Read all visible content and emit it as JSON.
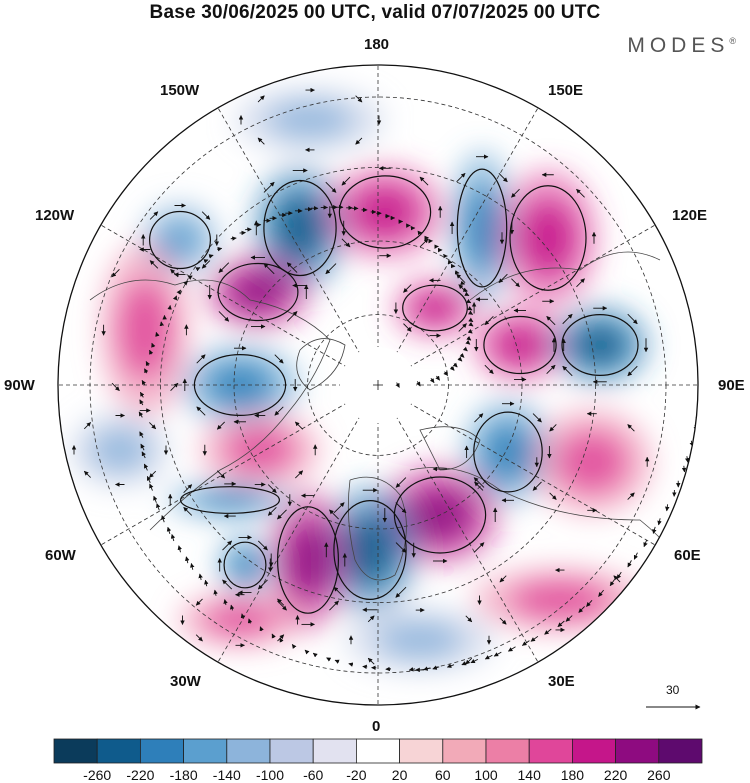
{
  "title": "Base 30/06/2025 00 UTC, valid 07/07/2025 00 UTC",
  "brand": "MODES",
  "brand_mark": "®",
  "longitude_labels": {
    "n180": "180",
    "w150": "150W",
    "e150": "150E",
    "w120": "120W",
    "e120": "120E",
    "w90": "90W",
    "e90": "90E",
    "w60": "60W",
    "e60": "60E",
    "w30": "30W",
    "e30": "30E",
    "s0": "0"
  },
  "reference_vector": {
    "label": "30"
  },
  "colorbar": {
    "levels": [
      "-260",
      "-220",
      "-180",
      "-140",
      "-100",
      "-60",
      "-20",
      "20",
      "60",
      "100",
      "140",
      "180",
      "220",
      "260"
    ],
    "colors": [
      "#0b3b5b",
      "#0f5b8c",
      "#2e7fba",
      "#5b9fcf",
      "#8db4db",
      "#bcc8e4",
      "#e2e2f0",
      "#ffffff",
      "#f7d4d6",
      "#f2aab8",
      "#ec7fa6",
      "#e0469a",
      "#c5168a",
      "#8e0b80",
      "#5e0a6e"
    ]
  },
  "anomalies": [
    {
      "type": "neg",
      "strength": 0.85
    },
    {
      "type": "pos",
      "strength": 0.55
    },
    {
      "type": "neg",
      "strength": 0.5
    },
    {
      "type": "pos",
      "strength": 0.8
    },
    {
      "type": "neg",
      "strength": 0.6
    },
    {
      "type": "neg",
      "strength": 0.6
    },
    {
      "type": "pos",
      "strength": 0.55
    },
    {
      "type": "pos",
      "strength": 0.6
    },
    {
      "type": "neg",
      "strength": 0.75
    },
    {
      "type": "pos",
      "strength": 0.5
    },
    {
      "type": "neg",
      "strength": 0.6
    },
    {
      "type": "pos",
      "strength": 0.45
    },
    {
      "type": "pos",
      "strength": 0.8
    },
    {
      "type": "neg",
      "strength": 0.85
    },
    {
      "type": "pos",
      "strength": 0.7
    },
    {
      "type": "neg",
      "strength": 0.7
    },
    {
      "type": "neg",
      "strength": 0.55
    },
    {
      "type": "pos",
      "strength": 0.35
    },
    {
      "type": "pos",
      "strength": 0.45
    },
    {
      "type": "neg",
      "strength": 0.3
    },
    {
      "type": "pos",
      "strength": 0.3
    },
    {
      "type": "neg",
      "strength": 0.25
    },
    {
      "type": "pos",
      "strength": 0.3
    },
    {
      "type": "neg",
      "strength": 0.3
    }
  ]
}
